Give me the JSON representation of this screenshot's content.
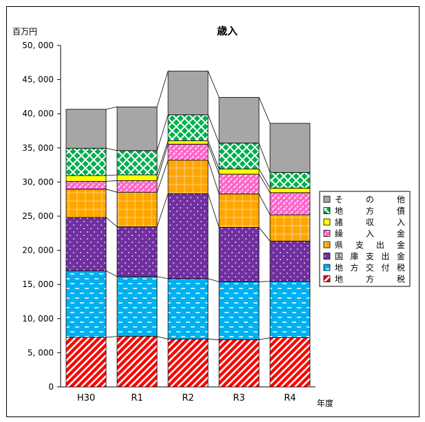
{
  "chart_data": {
    "type": "bar",
    "stacked": true,
    "title": "歳入",
    "ylabel": "百万円",
    "xlabel": "年度",
    "categories": [
      "H30",
      "R1",
      "R2",
      "R3",
      "R4"
    ],
    "ylim": [
      0,
      50000
    ],
    "yticks": [
      0,
      5000,
      10000,
      15000,
      20000,
      25000,
      30000,
      35000,
      40000,
      45000,
      50000
    ],
    "ytick_labels": [
      "0",
      "5, 000",
      "10, 000",
      "15, 000",
      "20, 000",
      "25, 000",
      "30, 000",
      "35, 000",
      "40, 000",
      "45, 000",
      "50, 000"
    ],
    "grid": false,
    "legend_position": "right",
    "connector_lines": true,
    "series": [
      {
        "name": "地　方　税",
        "color": "#ff0000",
        "pattern": "diagonal-stripes",
        "values": [
          7250,
          7400,
          7000,
          6900,
          7200
        ]
      },
      {
        "name": "地方交付税",
        "color": "#00b0f0",
        "pattern": "dashes",
        "values": [
          9750,
          8750,
          8850,
          8500,
          8250
        ]
      },
      {
        "name": "国庫支出金",
        "color": "#7030a0",
        "pattern": "dots",
        "values": [
          7800,
          7300,
          12450,
          7950,
          5900
        ]
      },
      {
        "name": "県　支　出　金",
        "color": "#ffa500",
        "pattern": "dotted-grid",
        "values": [
          4150,
          5050,
          4900,
          4900,
          3850
        ]
      },
      {
        "name": "繰　入　金",
        "color": "#ff66cc",
        "pattern": "diagonal-dashes",
        "values": [
          1150,
          1700,
          2350,
          2900,
          3250
        ]
      },
      {
        "name": "諸　収　入",
        "color": "#ffff00",
        "pattern": "solid",
        "values": [
          850,
          850,
          500,
          750,
          650
        ]
      },
      {
        "name": "地　方　債",
        "color": "#00b050",
        "pattern": "lattice",
        "values": [
          4000,
          3550,
          3800,
          3800,
          2300
        ]
      },
      {
        "name": "そ　の　他",
        "color": "#a6a6a6",
        "pattern": "solid",
        "values": [
          5700,
          6400,
          6400,
          6700,
          7200
        ]
      }
    ],
    "legend_order": [
      "そ　の　他",
      "地　方　債",
      "諸　収　入",
      "繰　入　金",
      "県　支　出　金",
      "国庫支出金",
      "地方交付税",
      "地　方　税"
    ]
  }
}
